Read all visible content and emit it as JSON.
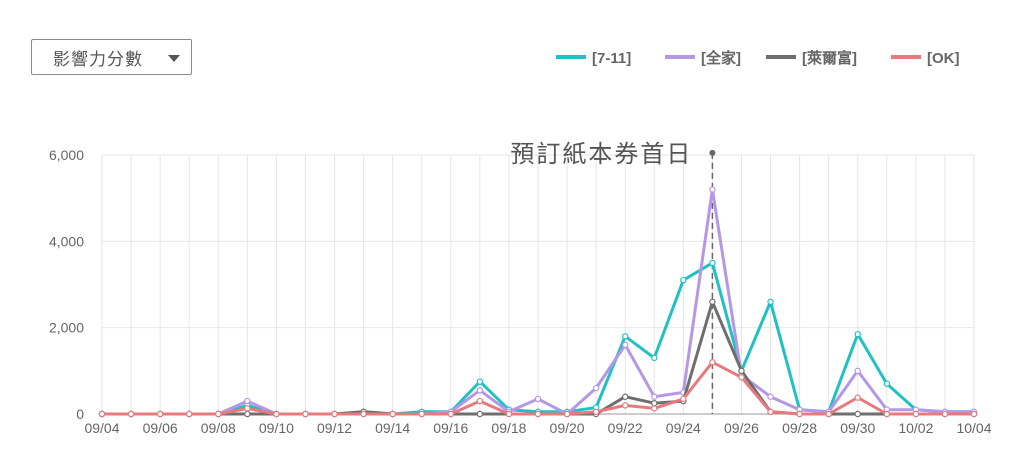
{
  "selector": {
    "label": "影響力分數",
    "icon": "caret-down-icon"
  },
  "chart_data": {
    "type": "line",
    "x": [
      "09/04",
      "09/05",
      "09/06",
      "09/07",
      "09/08",
      "09/09",
      "09/10",
      "09/11",
      "09/12",
      "09/13",
      "09/14",
      "09/15",
      "09/16",
      "09/17",
      "09/18",
      "09/19",
      "09/20",
      "09/21",
      "09/22",
      "09/23",
      "09/24",
      "09/25",
      "09/26",
      "09/27",
      "09/28",
      "09/29",
      "09/30",
      "10/01",
      "10/02",
      "10/03",
      "10/04"
    ],
    "x_tick_labels": [
      "09/04",
      "09/06",
      "09/08",
      "09/10",
      "09/12",
      "09/14",
      "09/16",
      "09/18",
      "09/20",
      "09/22",
      "09/24",
      "09/26",
      "09/28",
      "09/30",
      "10/02",
      "10/04"
    ],
    "y_ticks": [
      "0",
      "2,000",
      "4,000",
      "6,000"
    ],
    "ylim": [
      0,
      6000
    ],
    "grid": true,
    "legend_position": "top-right",
    "series": [
      {
        "name": "[7-11]",
        "color": "#1fc1c3",
        "values": [
          0,
          0,
          0,
          0,
          0,
          200,
          0,
          0,
          0,
          50,
          0,
          50,
          50,
          750,
          100,
          50,
          50,
          150,
          1800,
          1300,
          3100,
          3500,
          1000,
          2600,
          100,
          50,
          1850,
          700,
          100,
          50,
          50
        ]
      },
      {
        "name": "[全家]",
        "color": "#b497e7",
        "values": [
          0,
          0,
          0,
          0,
          0,
          300,
          0,
          0,
          0,
          0,
          0,
          0,
          50,
          550,
          50,
          350,
          0,
          600,
          1600,
          400,
          500,
          5200,
          900,
          400,
          100,
          50,
          1000,
          100,
          100,
          50,
          50
        ]
      },
      {
        "name": "[萊爾富]",
        "color": "#6e6e6e",
        "values": [
          0,
          0,
          0,
          0,
          0,
          0,
          0,
          0,
          0,
          50,
          0,
          0,
          0,
          0,
          0,
          0,
          0,
          0,
          400,
          250,
          300,
          2600,
          1000,
          50,
          0,
          0,
          0,
          0,
          0,
          0,
          0
        ]
      },
      {
        "name": "[OK]",
        "color": "#e87a7d",
        "values": [
          0,
          0,
          0,
          0,
          0,
          130,
          0,
          0,
          0,
          0,
          0,
          0,
          0,
          300,
          0,
          0,
          0,
          50,
          200,
          130,
          350,
          1200,
          850,
          50,
          0,
          0,
          380,
          0,
          0,
          0,
          0
        ]
      }
    ],
    "annotations": [
      {
        "text": "預訂紙本券首日",
        "x": "09/25",
        "y": 6050,
        "style": "dashed-vertical-line"
      }
    ]
  }
}
